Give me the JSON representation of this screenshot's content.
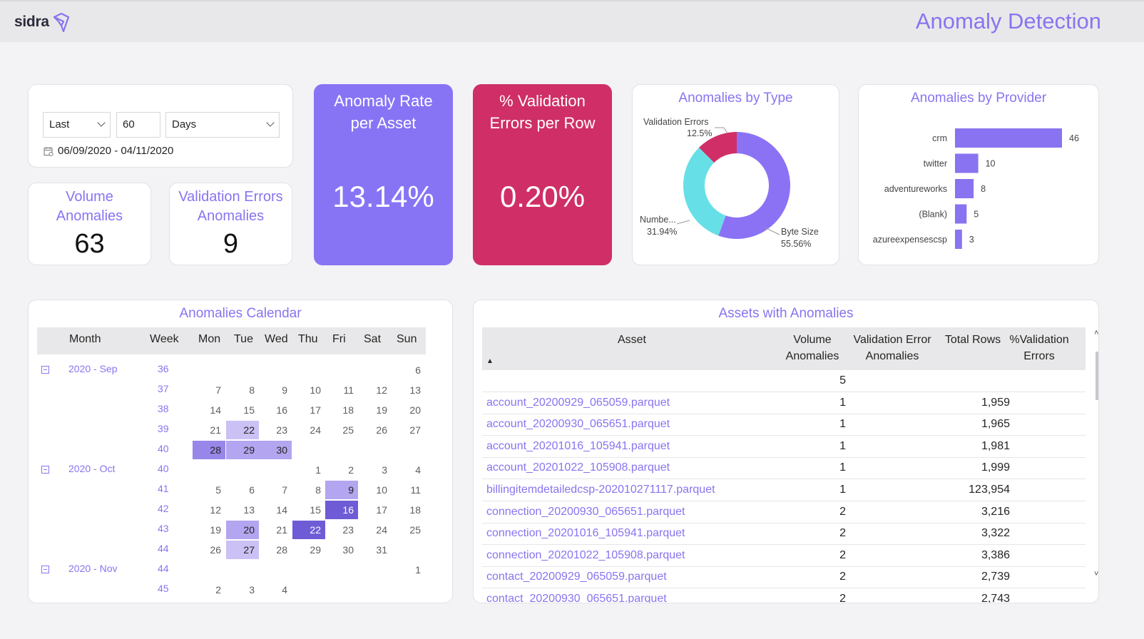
{
  "header": {
    "logo_text": "sidra",
    "title": "Anomaly Detection"
  },
  "colors": {
    "accent": "#8a73f0",
    "rate_card": "#8774f5",
    "validation_card": "#cf2f66",
    "donut_byte": "#8b72f5",
    "donut_number": "#66e0e6",
    "donut_validation": "#cf2f66"
  },
  "date_filter": {
    "mode": "Last",
    "amount": "60",
    "unit": "Days",
    "range": "06/09/2020 - 04/11/2020",
    "icon": "calendar-icon"
  },
  "kpis": {
    "volume": {
      "title_line1": "Volume",
      "title_line2": "Anomalies",
      "value": "63"
    },
    "validation": {
      "title_line1": "Validation Errors",
      "title_line2": "Anomalies",
      "value": "9"
    }
  },
  "rate_card": {
    "title_line1": "Anomaly Rate",
    "title_line2": "per Asset",
    "value": "13.14%"
  },
  "validation_card": {
    "title_line1": "% Validation",
    "title_line2": "Errors per Row",
    "value": "0.20%"
  },
  "by_type": {
    "title": "Anomalies by Type",
    "labels": {
      "validation_name": "Validation Errors",
      "validation_pct": "12.5%",
      "number_name": "Numbe...",
      "number_pct": "31.94%",
      "byte_name": "Byte Size",
      "byte_pct": "55.56%"
    }
  },
  "by_provider": {
    "title": "Anomalies by Provider"
  },
  "chart_data": [
    {
      "type": "pie",
      "title": "Anomalies by Type",
      "categories": [
        "Validation Errors",
        "Numbe...",
        "Byte Size"
      ],
      "values": [
        12.5,
        31.94,
        55.56
      ]
    },
    {
      "type": "bar",
      "orientation": "horizontal",
      "title": "Anomalies by Provider",
      "categories": [
        "crm",
        "twitter",
        "adventureworks",
        "(Blank)",
        "azureexpensescsp"
      ],
      "values": [
        46,
        10,
        8,
        5,
        3
      ]
    }
  ],
  "calendar": {
    "title": "Anomalies Calendar",
    "headers": {
      "month": "Month",
      "week": "Week",
      "mon": "Mon",
      "tue": "Tue",
      "wed": "Wed",
      "thu": "Thu",
      "fri": "Fri",
      "sat": "Sat",
      "sun": "Sun"
    },
    "rows": [
      {
        "month": "2020 - Sep",
        "week": "36",
        "days": [
          "",
          "",
          "",
          "",
          "",
          "",
          "6"
        ]
      },
      {
        "week": "37",
        "days": [
          "7",
          "8",
          "9",
          "10",
          "11",
          "12",
          "13"
        ]
      },
      {
        "week": "38",
        "days": [
          "14",
          "15",
          "16",
          "17",
          "18",
          "19",
          "20"
        ]
      },
      {
        "week": "39",
        "days": [
          "21",
          "22",
          "23",
          "24",
          "25",
          "26",
          "27"
        ],
        "levels": [
          0,
          1,
          0,
          0,
          0,
          0,
          0
        ]
      },
      {
        "week": "40",
        "days": [
          "28",
          "29",
          "30",
          "",
          "",
          "",
          ""
        ],
        "levels": [
          3,
          2,
          2,
          0,
          0,
          0,
          0
        ]
      },
      {
        "month": "2020 - Oct",
        "week": "40",
        "days": [
          "",
          "",
          "",
          "1",
          "2",
          "3",
          "4"
        ]
      },
      {
        "week": "41",
        "days": [
          "5",
          "6",
          "7",
          "8",
          "9",
          "10",
          "11"
        ],
        "levels": [
          0,
          0,
          0,
          0,
          2,
          0,
          0
        ]
      },
      {
        "week": "42",
        "days": [
          "12",
          "13",
          "14",
          "15",
          "16",
          "17",
          "18"
        ],
        "levels": [
          0,
          0,
          0,
          0,
          5,
          0,
          0
        ]
      },
      {
        "week": "43",
        "days": [
          "19",
          "20",
          "21",
          "22",
          "23",
          "24",
          "25"
        ],
        "levels": [
          0,
          2,
          0,
          5,
          0,
          0,
          0
        ]
      },
      {
        "week": "44",
        "days": [
          "26",
          "27",
          "28",
          "29",
          "30",
          "31",
          ""
        ],
        "levels": [
          0,
          1,
          0,
          0,
          0,
          0,
          0
        ]
      },
      {
        "month": "2020 - Nov",
        "week": "44",
        "days": [
          "",
          "",
          "",
          "",
          "",
          "",
          "1"
        ]
      },
      {
        "week": "45",
        "days": [
          "2",
          "3",
          "4",
          "",
          "",
          "",
          ""
        ]
      }
    ]
  },
  "assets_table": {
    "title": "Assets with Anomalies",
    "headers": {
      "asset": "Asset",
      "volume_l1": "Volume",
      "volume_l2": "Anomalies",
      "validation_l1": "Validation Error",
      "validation_l2": "Anomalies",
      "total_rows": "Total Rows",
      "pct_l1": "%Validation",
      "pct_l2": "Errors"
    },
    "sort_indicator": "▲",
    "rows": [
      {
        "asset": "",
        "volume": "5",
        "total_rows": ""
      },
      {
        "asset": "account_20200929_065059.parquet",
        "volume": "1",
        "total_rows": "1,959"
      },
      {
        "asset": "account_20200930_065651.parquet",
        "volume": "1",
        "total_rows": "1,965"
      },
      {
        "asset": "account_20201016_105941.parquet",
        "volume": "1",
        "total_rows": "1,981"
      },
      {
        "asset": "account_20201022_105908.parquet",
        "volume": "1",
        "total_rows": "1,999"
      },
      {
        "asset": "billingitemdetailedcsp-202010271117.parquet",
        "volume": "1",
        "total_rows": "123,954"
      },
      {
        "asset": "connection_20200930_065651.parquet",
        "volume": "2",
        "total_rows": "3,216"
      },
      {
        "asset": "connection_20201016_105941.parquet",
        "volume": "2",
        "total_rows": "3,322"
      },
      {
        "asset": "connection_20201022_105908.parquet",
        "volume": "2",
        "total_rows": "3,386"
      },
      {
        "asset": "contact_20200929_065059.parquet",
        "volume": "2",
        "total_rows": "2,739"
      },
      {
        "asset": "contact_20200930_065651.parquet",
        "volume": "2",
        "total_rows": "2,743"
      }
    ],
    "scroll_up": "˄",
    "scroll_down": "˅"
  }
}
